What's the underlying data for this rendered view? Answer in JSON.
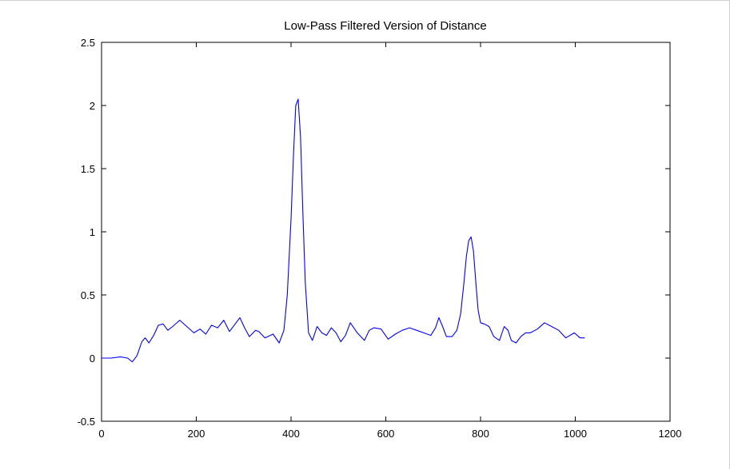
{
  "chart_data": {
    "type": "line",
    "title": "Low-Pass Filtered Version of Distance",
    "xlabel": "",
    "ylabel": "",
    "xlim": [
      0,
      1200
    ],
    "ylim": [
      -0.5,
      2.5
    ],
    "xticks": [
      0,
      200,
      400,
      600,
      800,
      1000,
      1200
    ],
    "yticks": [
      -0.5,
      0,
      0.5,
      1,
      1.5,
      2,
      2.5
    ],
    "xtick_labels": [
      "0",
      "200",
      "400",
      "600",
      "800",
      "1000",
      "1200"
    ],
    "ytick_labels": [
      "-0.5",
      "0",
      "0.5",
      "1",
      "1.5",
      "2",
      "2.5"
    ],
    "grid": false,
    "line_color": "#0000ff",
    "series": [
      {
        "x": [
          0,
          20,
          40,
          55,
          65,
          75,
          85,
          92,
          100,
          110,
          120,
          130,
          140,
          150,
          165,
          180,
          195,
          208,
          220,
          232,
          245,
          258,
          270,
          280,
          292,
          302,
          312,
          325,
          332,
          345,
          362,
          375,
          385,
          392,
          400,
          405,
          410,
          415,
          420,
          425,
          430,
          437,
          445,
          455,
          465,
          475,
          485,
          495,
          505,
          515,
          525,
          540,
          555,
          565,
          575,
          590,
          605,
          620,
          635,
          650,
          665,
          680,
          695,
          705,
          712,
          720,
          728,
          740,
          750,
          758,
          765,
          770,
          775,
          780,
          785,
          790,
          795,
          800,
          808,
          818,
          828,
          840,
          850,
          858,
          865,
          875,
          885,
          895,
          905,
          920,
          935,
          950,
          965,
          980,
          998,
          1010,
          1020
        ],
        "y": [
          0.0,
          0.0,
          0.01,
          0.0,
          -0.03,
          0.02,
          0.13,
          0.16,
          0.12,
          0.18,
          0.26,
          0.27,
          0.22,
          0.25,
          0.3,
          0.25,
          0.2,
          0.23,
          0.19,
          0.26,
          0.24,
          0.3,
          0.21,
          0.26,
          0.32,
          0.24,
          0.17,
          0.22,
          0.21,
          0.16,
          0.19,
          0.12,
          0.22,
          0.5,
          1.1,
          1.6,
          2.0,
          2.05,
          1.75,
          1.15,
          0.6,
          0.2,
          0.14,
          0.25,
          0.2,
          0.18,
          0.24,
          0.2,
          0.13,
          0.18,
          0.28,
          0.2,
          0.14,
          0.22,
          0.24,
          0.23,
          0.15,
          0.19,
          0.22,
          0.24,
          0.22,
          0.2,
          0.18,
          0.24,
          0.32,
          0.25,
          0.17,
          0.17,
          0.22,
          0.35,
          0.6,
          0.8,
          0.93,
          0.96,
          0.85,
          0.6,
          0.38,
          0.28,
          0.27,
          0.25,
          0.17,
          0.14,
          0.25,
          0.22,
          0.14,
          0.12,
          0.17,
          0.2,
          0.2,
          0.23,
          0.28,
          0.25,
          0.22,
          0.16,
          0.2,
          0.16,
          0.16
        ]
      }
    ]
  }
}
